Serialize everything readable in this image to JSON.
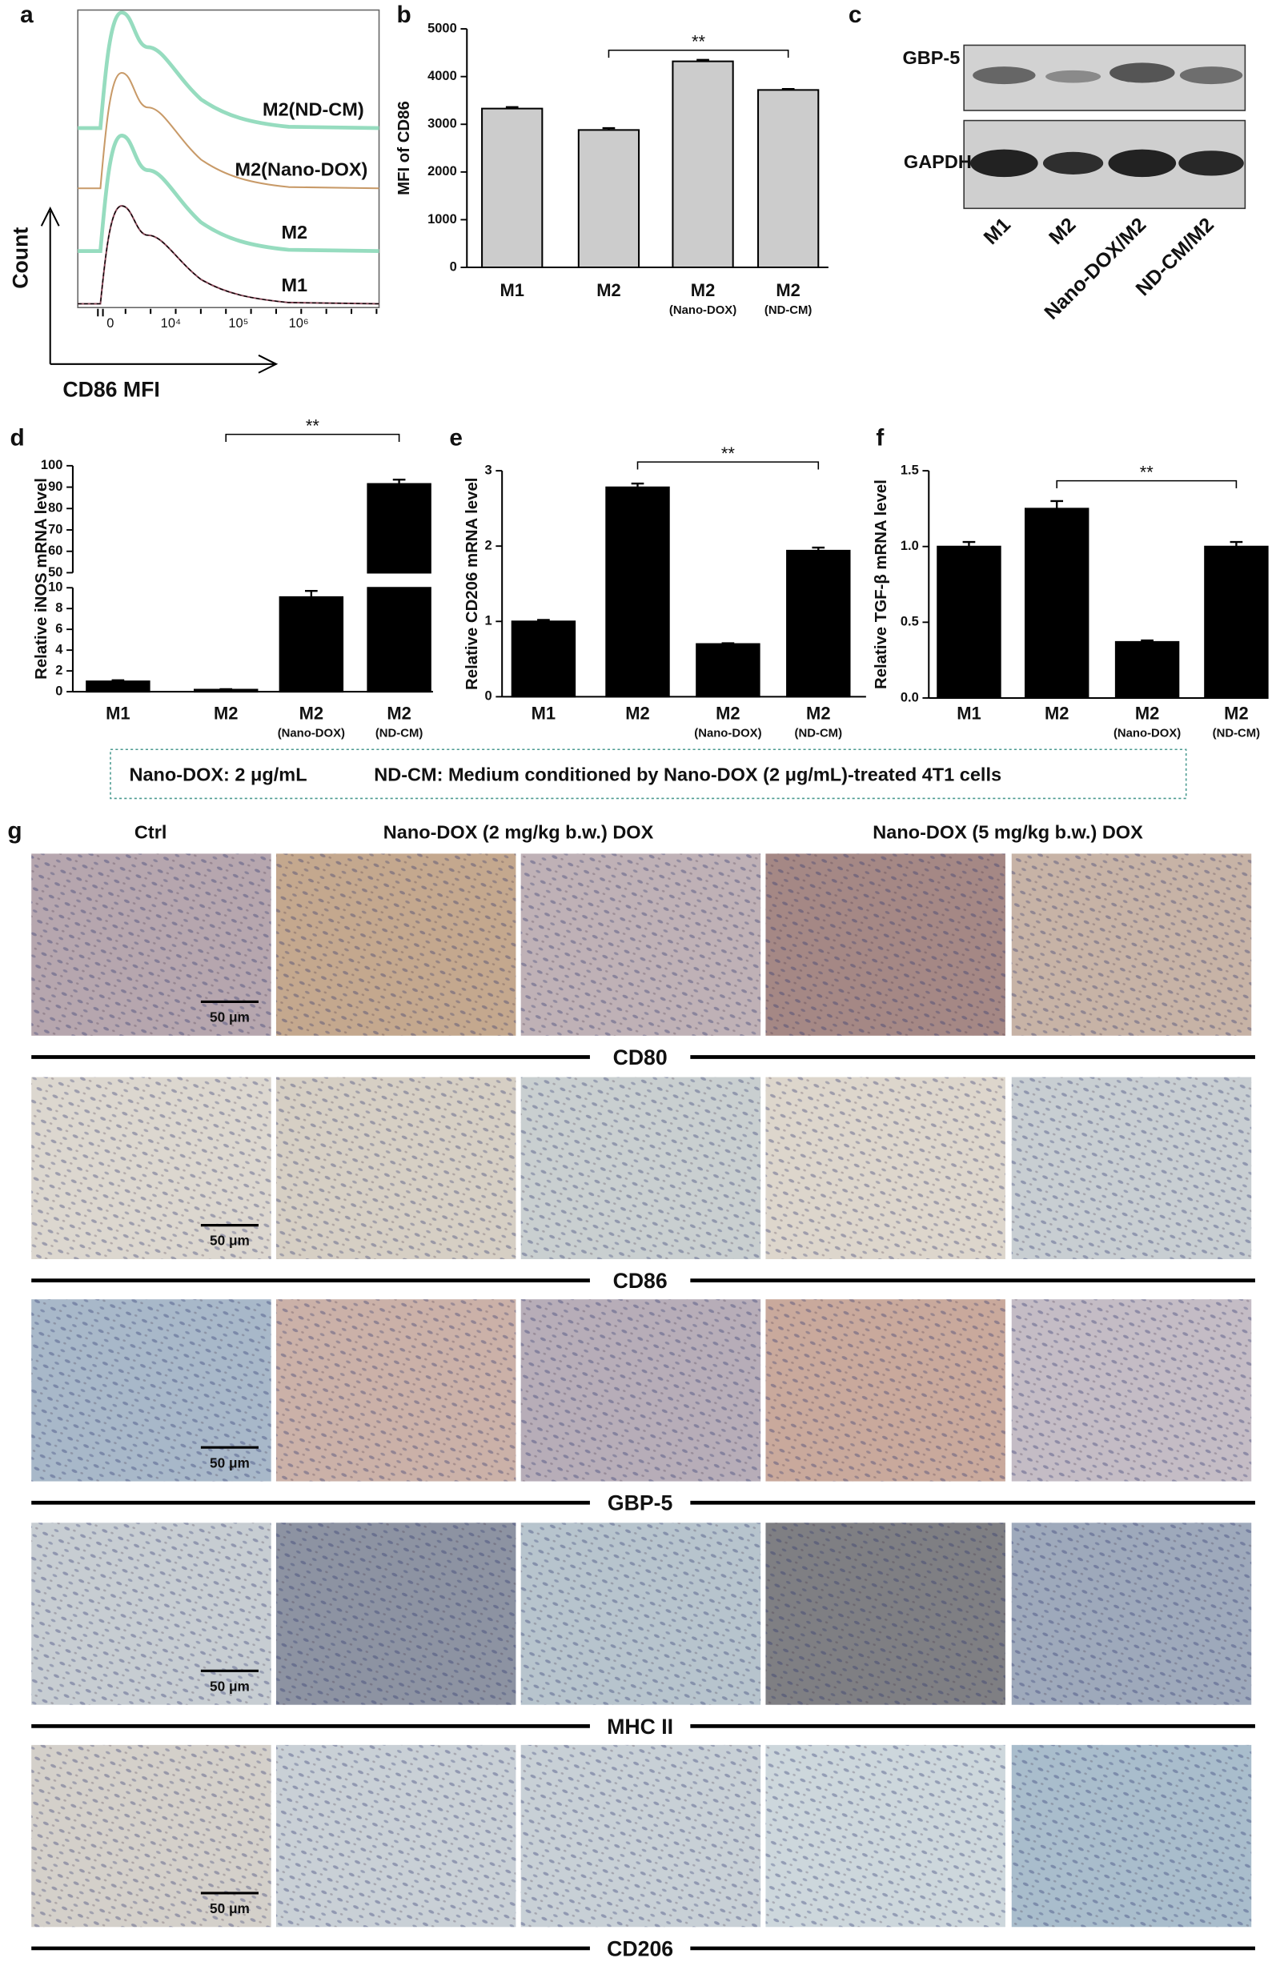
{
  "flow": {
    "panel": "a",
    "curves": [
      "M2(ND-CM)",
      "M2(Nano-DOX)",
      "M2",
      "M1"
    ],
    "ylabel": "Count",
    "xlabel": "CD86 MFI",
    "xtick_labels": [
      "0",
      "10⁴",
      "10⁵",
      "10⁶"
    ]
  },
  "blot": {
    "panel": "c",
    "rows": [
      "GBP-5",
      "GAPDH"
    ],
    "lanes": [
      "M1",
      "M2",
      "Nano-DOX/M2",
      "ND-CM/M2"
    ]
  },
  "chart_data": [
    {
      "type": "bar",
      "panel": "b",
      "ylabel": "MFI of CD86",
      "categories": [
        "M1",
        "M2",
        "M2",
        "M2"
      ],
      "sublabels": [
        null,
        null,
        "(Nano-DOX)",
        "(ND-CM)"
      ],
      "values": [
        3330,
        2880,
        4320,
        3720
      ],
      "errors": [
        30,
        40,
        30,
        20
      ],
      "color": "#cccccc",
      "ylim": [
        0,
        5000
      ],
      "yticks": [
        0,
        1000,
        2000,
        3000,
        4000,
        5000
      ],
      "annotation": "**"
    },
    {
      "type": "bar",
      "panel": "d",
      "ylabel": "Relative iNOS mRNA level",
      "categories": [
        "M1",
        "M2",
        "M2",
        "M2"
      ],
      "sublabels": [
        null,
        null,
        "(Nano-DOX)",
        "(ND-CM)"
      ],
      "values": [
        1.0,
        0.2,
        9.1,
        91.5
      ],
      "errors": [
        0.1,
        0.05,
        0.6,
        2
      ],
      "color": "#000000",
      "ylim": [
        0,
        100
      ],
      "ybreak": [
        10,
        50
      ],
      "yticks": [
        0,
        2,
        4,
        6,
        8,
        10,
        50,
        60,
        70,
        80,
        90,
        100
      ],
      "annotation": "**"
    },
    {
      "type": "bar",
      "panel": "e",
      "ylabel": "Relative CD206 mRNA level",
      "categories": [
        "M1",
        "M2",
        "M2",
        "M2"
      ],
      "sublabels": [
        null,
        null,
        "(Nano-DOX)",
        "(ND-CM)"
      ],
      "values": [
        1.0,
        2.78,
        0.7,
        1.94
      ],
      "errors": [
        0.02,
        0.05,
        0.01,
        0.04
      ],
      "color": "#000000",
      "ylim": [
        0,
        3
      ],
      "yticks": [
        0,
        1,
        2,
        3
      ],
      "annotation": "**"
    },
    {
      "type": "bar",
      "panel": "f",
      "ylabel": "Relative TGF-β  mRNA level",
      "categories": [
        "M1",
        "M2",
        "M2",
        "M2"
      ],
      "sublabels": [
        null,
        null,
        "(Nano-DOX)",
        "(ND-CM)"
      ],
      "values": [
        1.0,
        1.25,
        0.37,
        1.0
      ],
      "errors": [
        0.03,
        0.05,
        0.01,
        0.03
      ],
      "color": "#000000",
      "ylim": [
        0,
        1.5
      ],
      "yticks": [
        {
          "value": 0,
          "label": "0.0"
        },
        {
          "value": 0.5,
          "label": "0.5"
        },
        {
          "value": 1,
          "label": "1.0"
        },
        {
          "value": 1.5,
          "label": "1.5"
        }
      ],
      "annotation": "**"
    }
  ],
  "note": [
    "Nano-DOX: 2 μg/mL",
    "ND-CM: Medium conditioned by Nano-DOX (2 μg/mL)-treated 4T1 cells"
  ],
  "ihc": {
    "panel": "g",
    "headers": [
      "Ctrl",
      "Nano-DOX (2 mg/kg b.w.) DOX",
      "Nano-DOX  (5 mg/kg b.w.) DOX"
    ],
    "rows": [
      "CD80",
      "CD86",
      "GBP-5",
      "MHC II",
      "CD206"
    ],
    "scale_bar": "50 μm"
  }
}
